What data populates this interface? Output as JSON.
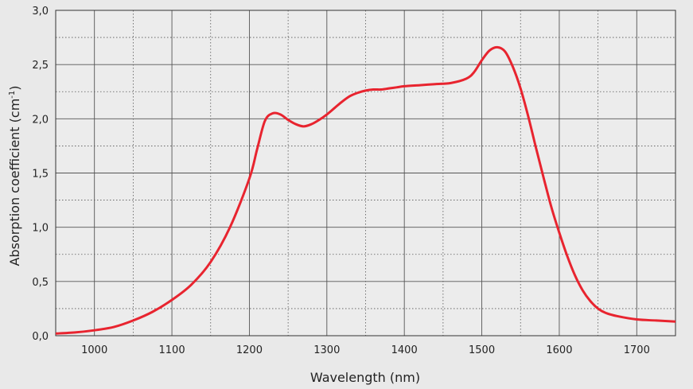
{
  "chart_data": {
    "type": "line",
    "title": "",
    "xlabel": "Wavelength (nm)",
    "ylabel_main": "Absorption coefficient (cm",
    "ylabel_sup": "-1",
    "ylabel_close": ")",
    "xlim": [
      950,
      1750
    ],
    "ylim": [
      0,
      3.0
    ],
    "x_ticks": [
      1000,
      1100,
      1200,
      1300,
      1400,
      1500,
      1600,
      1700
    ],
    "x_tick_labels": [
      "1000",
      "1100",
      "1200",
      "1300",
      "1400",
      "1500",
      "1600",
      "1700"
    ],
    "y_ticks": [
      0,
      0.5,
      1.0,
      1.5,
      2.0,
      2.5,
      3.0
    ],
    "y_tick_labels": [
      "0,0",
      "0,5",
      "1,0",
      "1,5",
      "2,0",
      "2,5",
      "3,0"
    ],
    "x_minor_grid_step": 50,
    "y_minor_grid_step": 0.25,
    "grid": true,
    "series": [
      {
        "color": "#e8242f",
        "x": [
          950,
          975,
          1000,
          1025,
          1050,
          1075,
          1100,
          1125,
          1150,
          1175,
          1200,
          1210,
          1220,
          1230,
          1240,
          1250,
          1260,
          1270,
          1280,
          1290,
          1300,
          1310,
          1320,
          1330,
          1340,
          1350,
          1360,
          1370,
          1380,
          1390,
          1400,
          1420,
          1440,
          1460,
          1480,
          1490,
          1500,
          1510,
          1520,
          1530,
          1540,
          1550,
          1560,
          1570,
          1580,
          1590,
          1600,
          1610,
          1620,
          1630,
          1640,
          1650,
          1660,
          1675,
          1700,
          1725,
          1750
        ],
        "y": [
          0.02,
          0.03,
          0.05,
          0.08,
          0.14,
          0.22,
          0.33,
          0.47,
          0.68,
          1.0,
          1.45,
          1.72,
          1.98,
          2.05,
          2.04,
          1.99,
          1.95,
          1.93,
          1.95,
          1.99,
          2.04,
          2.1,
          2.16,
          2.21,
          2.24,
          2.26,
          2.27,
          2.27,
          2.28,
          2.29,
          2.3,
          2.31,
          2.32,
          2.33,
          2.37,
          2.43,
          2.54,
          2.63,
          2.66,
          2.62,
          2.48,
          2.28,
          2.02,
          1.73,
          1.45,
          1.18,
          0.95,
          0.74,
          0.56,
          0.42,
          0.32,
          0.25,
          0.21,
          0.18,
          0.15,
          0.14,
          0.13
        ]
      }
    ]
  }
}
